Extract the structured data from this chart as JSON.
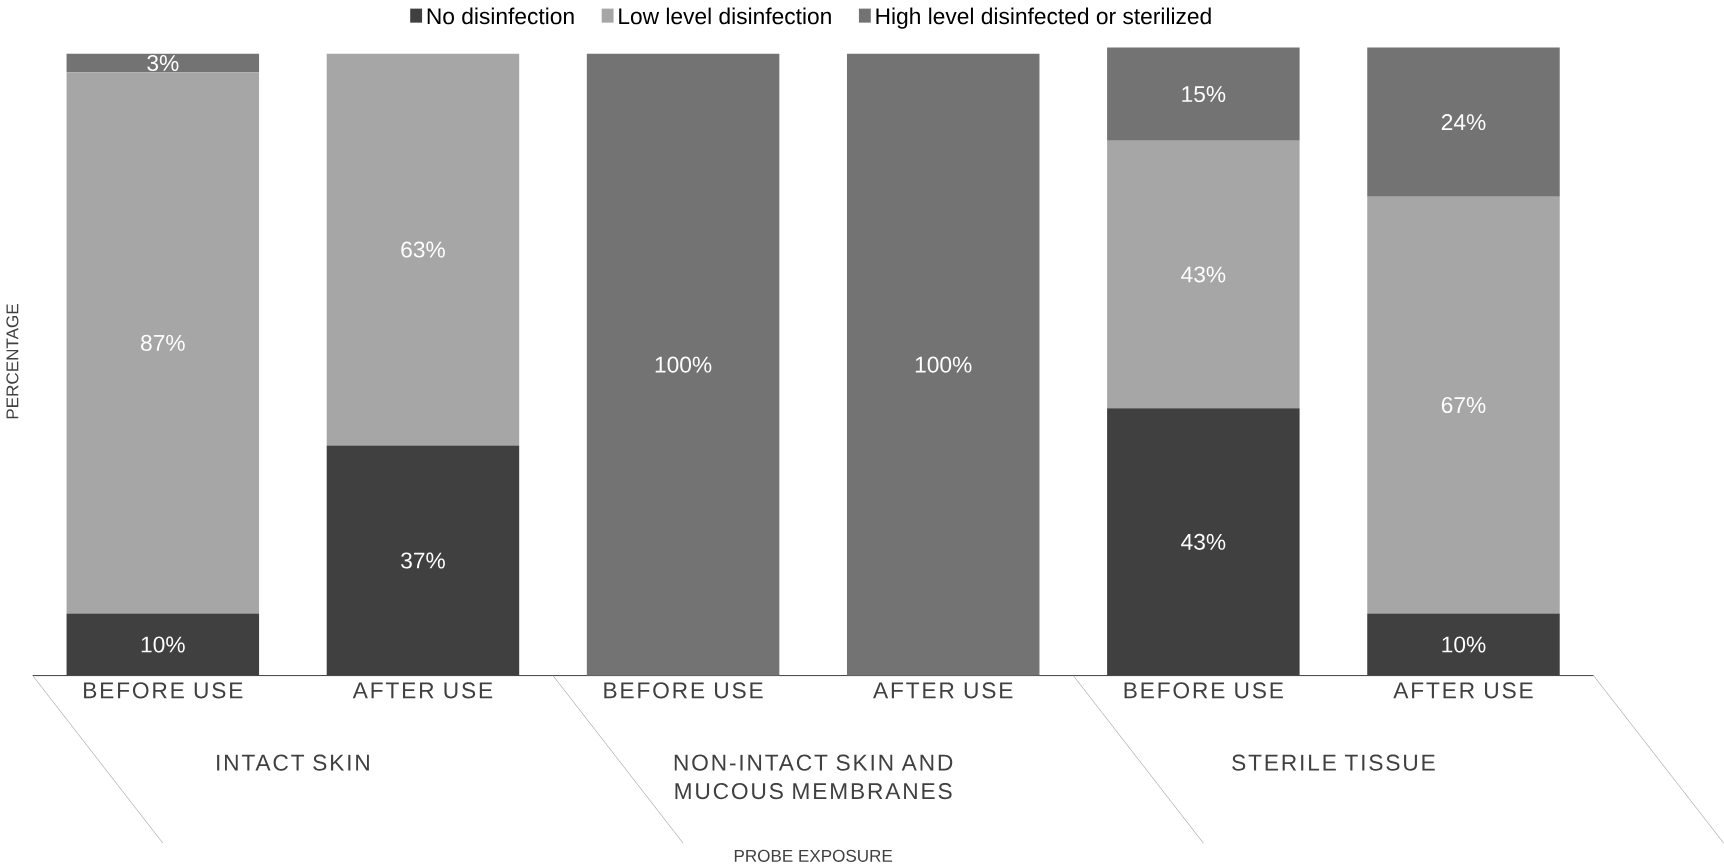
{
  "chart_data": {
    "type": "bar",
    "stacked": true,
    "legend": "top",
    "ylabel": "PERCENTAGE",
    "categories": [
      "BEFORE USE",
      "AFTER USE",
      "BEFORE USE",
      "AFTER USE",
      "BEFORE USE",
      "AFTER USE"
    ],
    "annotations": [
      "INTACT SKIN",
      "NON-INTACT SKIN AND MUCOUS MEMBRANES",
      "STERILE TISSUE",
      "PROBE EXPOSURE"
    ],
    "series": [
      {
        "name": "No disinfection",
        "color": "#404040",
        "values": [
          10,
          37,
          0,
          0,
          43,
          10
        ],
        "value_labels": [
          "10%",
          "37%",
          null,
          null,
          "43%",
          "10%"
        ]
      },
      {
        "name": "Low level disinfection",
        "color": "#a6a6a6",
        "values": [
          87,
          63,
          0,
          0,
          43,
          67
        ],
        "value_labels": [
          "87%",
          "63%",
          null,
          null,
          "43%",
          "67%"
        ]
      },
      {
        "name": "High level disinfected or sterilized",
        "color": "#737373",
        "values": [
          3,
          0,
          100,
          100,
          15,
          24
        ],
        "value_labels": [
          "3%",
          null,
          "100%",
          "100%",
          "15%",
          "24%"
        ]
      }
    ]
  }
}
